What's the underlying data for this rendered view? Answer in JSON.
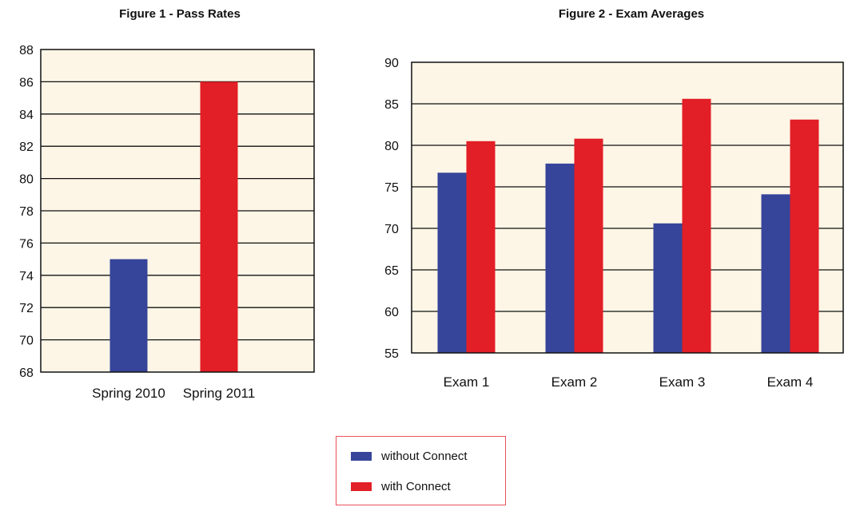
{
  "colors": {
    "without": "#36449a",
    "with": "#e21e26",
    "plot_bg": "#fdf6e6",
    "legend_border": "#e8515b"
  },
  "legend": {
    "items": [
      {
        "label": "without Connect",
        "color": "#36449a"
      },
      {
        "label": "with Connect",
        "color": "#e21e26"
      }
    ],
    "placement": "bottom-center"
  },
  "chart_data": [
    {
      "type": "bar",
      "title": "Figure 1 - Pass Rates",
      "categories": [
        "Spring 2010",
        "Spring 2011"
      ],
      "values": [
        75,
        86
      ],
      "bar_colors": [
        "#36449a",
        "#e21e26"
      ],
      "ylim": [
        68,
        88
      ],
      "yticks": [
        68,
        70,
        72,
        74,
        76,
        78,
        80,
        82,
        84,
        86,
        88
      ],
      "grid": true
    },
    {
      "type": "bar",
      "title": "Figure 2 - Exam Averages",
      "categories": [
        "Exam 1",
        "Exam 2",
        "Exam 3",
        "Exam 4"
      ],
      "series": [
        {
          "name": "without Connect",
          "values": [
            76.7,
            77.8,
            70.6,
            74.1
          ]
        },
        {
          "name": "with Connect",
          "values": [
            80.5,
            80.8,
            85.6,
            83.1
          ]
        }
      ],
      "ylim": [
        55,
        90
      ],
      "yticks": [
        55,
        60,
        65,
        70,
        75,
        80,
        85,
        90
      ],
      "grid": true
    }
  ]
}
